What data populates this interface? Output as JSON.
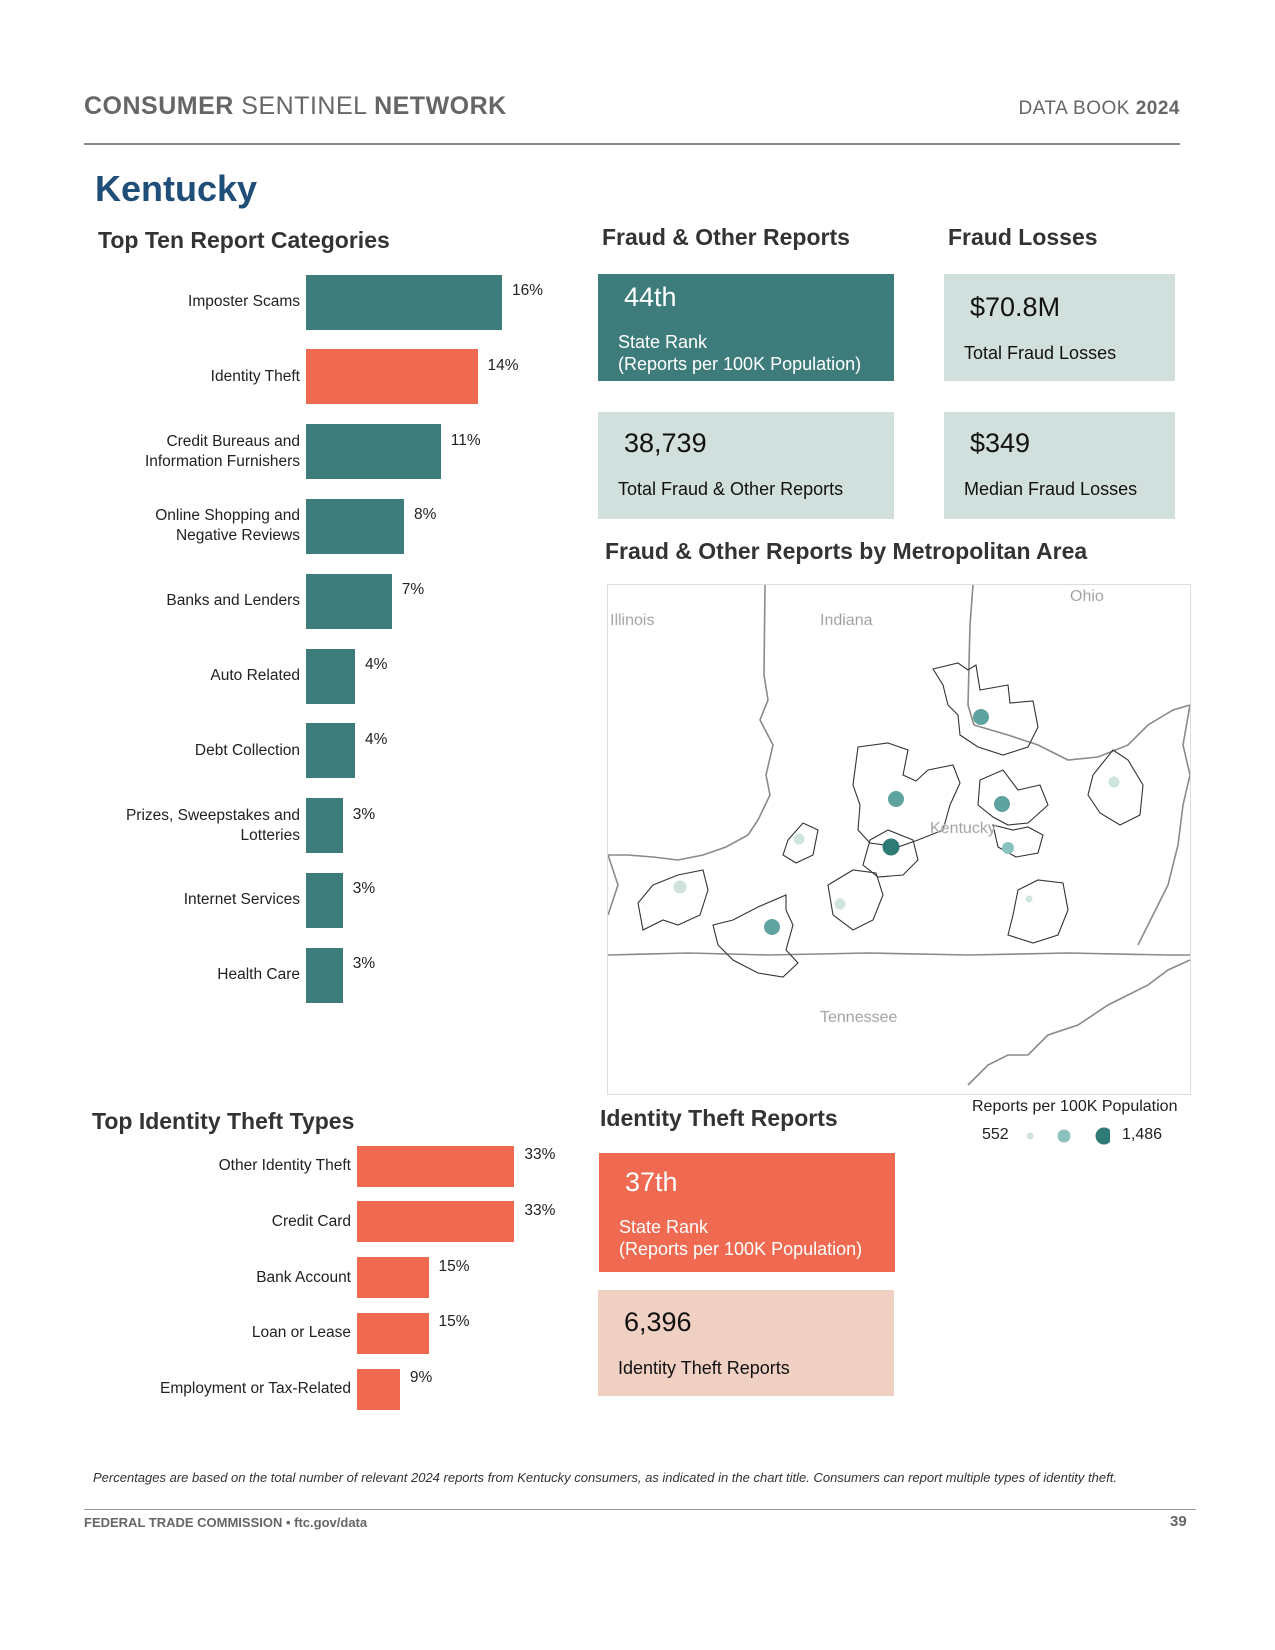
{
  "header": {
    "network_w1": "CONSUMER",
    "network_w2": "SENTINEL",
    "network_w3": "NETWORK",
    "databook_w1": "DATA BOOK",
    "databook_w2": "2024"
  },
  "state": "Kentucky",
  "top_ten": {
    "title": "Top Ten Report Categories",
    "colors": {
      "default": "#3e7c7b",
      "highlight": "#ef6a51"
    }
  },
  "chart_data": [
    {
      "type": "bar",
      "orientation": "horizontal",
      "title": "Top Ten Report Categories",
      "categories": [
        "Imposter Scams",
        "Identity Theft",
        "Credit Bureaus and Information Furnishers",
        "Online Shopping and Negative Reviews",
        "Banks and Lenders",
        "Auto Related",
        "Debt Collection",
        "Prizes, Sweepstakes and Lotteries",
        "Internet Services",
        "Health Care"
      ],
      "label_lines": [
        [
          "Imposter Scams"
        ],
        [
          "Identity Theft"
        ],
        [
          "Credit Bureaus and",
          "Information Furnishers"
        ],
        [
          "Online Shopping and",
          "Negative Reviews"
        ],
        [
          "Banks and Lenders"
        ],
        [
          "Auto Related"
        ],
        [
          "Debt Collection"
        ],
        [
          "Prizes, Sweepstakes and",
          "Lotteries"
        ],
        [
          "Internet Services"
        ],
        [
          "Health Care"
        ]
      ],
      "values": [
        16,
        14,
        11,
        8,
        7,
        4,
        4,
        3,
        3,
        3
      ],
      "value_labels": [
        "16%",
        "14%",
        "11%",
        "8%",
        "7%",
        "4%",
        "4%",
        "3%",
        "3%",
        "3%"
      ],
      "unit": "%",
      "highlight_index": 1
    },
    {
      "type": "bar",
      "orientation": "horizontal",
      "title": "Top Identity Theft Types",
      "categories": [
        "Other Identity Theft",
        "Credit Card",
        "Bank Account",
        "Loan or Lease",
        "Employment or Tax-Related"
      ],
      "label_lines": [
        [
          "Other Identity Theft"
        ],
        [
          "Credit Card"
        ],
        [
          "Bank Account"
        ],
        [
          "Loan or Lease"
        ],
        [
          "Employment or Tax-Related"
        ]
      ],
      "values": [
        33,
        33,
        15,
        15,
        9
      ],
      "value_labels": [
        "33%",
        "33%",
        "15%",
        "15%",
        "9%"
      ],
      "unit": "%"
    }
  ],
  "fraud_reports": {
    "title": "Fraud & Other Reports",
    "rank": "44th",
    "rank_label_1": "State Rank",
    "rank_label_2": "(Reports per 100K Population)",
    "total": "38,739",
    "total_label": "Total Fraud & Other Reports"
  },
  "fraud_losses": {
    "title": "Fraud Losses",
    "total": "$70.8M",
    "total_label": "Total Fraud Losses",
    "median": "$349",
    "median_label": "Median Fraud Losses"
  },
  "map": {
    "title": "Fraud & Other Reports by Metropolitan Area",
    "labels": {
      "illinois": "Illinois",
      "indiana": "Indiana",
      "ohio": "Ohio",
      "kentucky": "Kentucky",
      "tennessee": "Tennessee"
    },
    "legend_title": "Reports per 100K Population",
    "legend_min": "552",
    "legend_max": "1,486",
    "colors": {
      "low": "#cfe3df",
      "mid": "#8cc2bd",
      "mid2": "#5fa39e",
      "high": "#2e7a74"
    }
  },
  "identity_theft": {
    "title": "Identity Theft Reports",
    "rank": "37th",
    "rank_label_1": "State Rank",
    "rank_label_2": "(Reports per 100K Population)",
    "total": "6,396",
    "total_label": "Identity Theft Reports"
  },
  "id_types": {
    "title": "Top Identity Theft Types",
    "color": "#ef6a51"
  },
  "footer": {
    "note": "Percentages are based on the total number of relevant 2024 reports from Kentucky consumers, as indicated in the chart title.  Consumers can report multiple types of identity theft.",
    "org": "FEDERAL TRADE COMMISSION • ftc.gov/data",
    "page": "39"
  }
}
